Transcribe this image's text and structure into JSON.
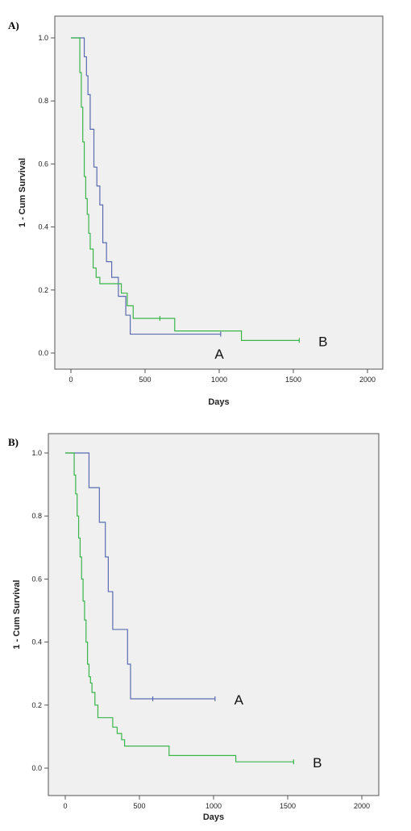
{
  "colors": {
    "plot_bg": "#f0f0f0",
    "series_a": "#5a6bb0",
    "series_b": "#39b54a",
    "frame": "#555555"
  },
  "chart_data": [
    {
      "type": "line",
      "panel_label": "A)",
      "xlabel": "Days",
      "ylabel": "1 - Cum Survival",
      "xlim": [
        0,
        2000
      ],
      "ylim": [
        0,
        1.0
      ],
      "x_ticks": [
        0,
        500,
        1000,
        1500,
        2000
      ],
      "x_tick_labels": [
        "0",
        "500",
        "1000",
        "1500",
        "2000"
      ],
      "y_ticks": [
        0.0,
        0.2,
        0.4,
        0.6,
        0.8,
        1.0
      ],
      "y_tick_labels": [
        "0.0",
        "0.2",
        "0.4",
        "0.6",
        "0.8",
        "1.0"
      ],
      "grid": false,
      "series": [
        {
          "name": "A",
          "label_x": 1000,
          "label_y": 0.0,
          "x": [
            0,
            70,
            90,
            105,
            115,
            130,
            155,
            175,
            195,
            215,
            240,
            275,
            320,
            370,
            400,
            1010
          ],
          "y": [
            1.0,
            1.0,
            0.94,
            0.88,
            0.82,
            0.71,
            0.59,
            0.53,
            0.47,
            0.35,
            0.29,
            0.24,
            0.18,
            0.12,
            0.06,
            0.06
          ],
          "censored": [
            [
              1010,
              0.06
            ]
          ]
        },
        {
          "name": "B",
          "label_x": 1700,
          "label_y": 0.04,
          "x": [
            0,
            50,
            60,
            70,
            80,
            90,
            100,
            110,
            120,
            130,
            150,
            170,
            195,
            340,
            380,
            420,
            700,
            1150,
            1540
          ],
          "y": [
            1.0,
            1.0,
            0.89,
            0.78,
            0.67,
            0.56,
            0.49,
            0.44,
            0.38,
            0.33,
            0.27,
            0.24,
            0.22,
            0.19,
            0.15,
            0.11,
            0.07,
            0.04,
            0.04
          ],
          "censored": [
            [
              600,
              0.11
            ],
            [
              1540,
              0.04
            ]
          ]
        }
      ]
    },
    {
      "type": "line",
      "panel_label": "B)",
      "xlabel": "Days",
      "ylabel": "1 - Cum Survival",
      "xlim": [
        0,
        2000
      ],
      "ylim": [
        0,
        1.0
      ],
      "x_ticks": [
        0,
        500,
        1000,
        1500,
        2000
      ],
      "x_tick_labels": [
        "0",
        "500",
        "1000",
        "1500",
        "2000"
      ],
      "y_ticks": [
        0.0,
        0.2,
        0.4,
        0.6,
        0.8,
        1.0
      ],
      "y_tick_labels": [
        "0.0",
        "0.2",
        "0.4",
        "0.6",
        "0.8",
        "1.0"
      ],
      "grid": false,
      "series": [
        {
          "name": "A",
          "label_x": 1170,
          "label_y": 0.22,
          "x": [
            0,
            130,
            160,
            230,
            270,
            290,
            320,
            400,
            420,
            440,
            1010
          ],
          "y": [
            1.0,
            1.0,
            0.89,
            0.78,
            0.67,
            0.56,
            0.44,
            0.44,
            0.33,
            0.22,
            0.22
          ],
          "censored": [
            [
              590,
              0.22
            ],
            [
              1010,
              0.22
            ]
          ]
        },
        {
          "name": "B",
          "label_x": 1700,
          "label_y": 0.02,
          "x": [
            0,
            50,
            60,
            70,
            80,
            90,
            100,
            110,
            120,
            130,
            140,
            150,
            160,
            170,
            180,
            200,
            220,
            320,
            350,
            380,
            400,
            420,
            700,
            1150,
            1540
          ],
          "y": [
            1.0,
            1.0,
            0.93,
            0.87,
            0.8,
            0.73,
            0.67,
            0.6,
            0.53,
            0.47,
            0.4,
            0.33,
            0.29,
            0.27,
            0.24,
            0.2,
            0.16,
            0.13,
            0.11,
            0.09,
            0.07,
            0.07,
            0.04,
            0.02,
            0.02
          ],
          "censored": [
            [
              1540,
              0.02
            ]
          ]
        }
      ]
    }
  ]
}
